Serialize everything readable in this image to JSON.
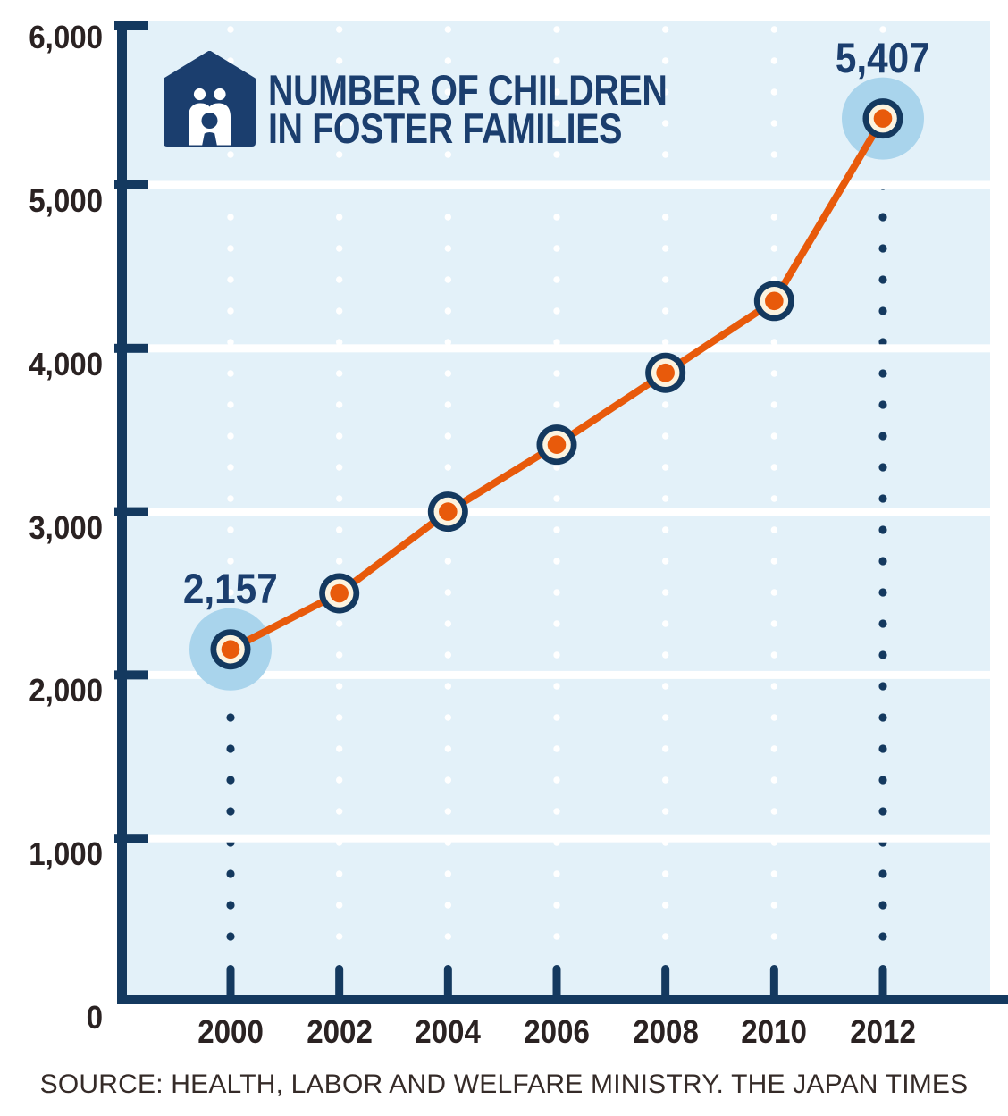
{
  "title": {
    "line1": "NUMBER OF CHILDREN",
    "line2": "IN FOSTER FAMILIES",
    "icon": "family-in-house-icon"
  },
  "source": "SOURCE: HEALTH, LABOR AND WELFARE MINISTRY. THE JAPAN TIMES",
  "colors": {
    "page_bg": "#FFFFFF",
    "plot_bg": "#E3F1F9",
    "navy": "#14395F",
    "text_navy": "#1B3E6E",
    "orange": "#E85A0B",
    "cream": "#FCF3DF",
    "halo_blue": "#A9D4EC",
    "grid_white": "#FFFFFF",
    "axis_text": "#2A2222",
    "source_text": "#352B28"
  },
  "chart_data": {
    "type": "line",
    "title": "NUMBER OF CHILDREN IN FOSTER FAMILIES",
    "x": [
      2000,
      2002,
      2004,
      2006,
      2008,
      2010,
      2012
    ],
    "x_tick_labels": [
      "2000",
      "2002",
      "2004",
      "2006",
      "2008",
      "2010",
      "2012"
    ],
    "series": [
      {
        "name": "Children in foster families",
        "values": [
          2157,
          2500,
          3000,
          3410,
          3850,
          4290,
          5407
        ]
      }
    ],
    "point_labels": [
      {
        "x": 2000,
        "label": "2,157"
      },
      {
        "x": 2012,
        "label": "5,407"
      }
    ],
    "ylim": [
      0,
      6000
    ],
    "y_ticks": [
      0,
      1000,
      2000,
      3000,
      4000,
      5000,
      6000
    ],
    "y_tick_labels": [
      "0",
      "1,000",
      "2,000",
      "3,000",
      "4,000",
      "5,000",
      "6,000"
    ],
    "xlabel": "",
    "ylabel": "",
    "legend": "none",
    "grid": "white horizontal gridlines at each 1,000; dotted vertical guide columns at each year"
  }
}
